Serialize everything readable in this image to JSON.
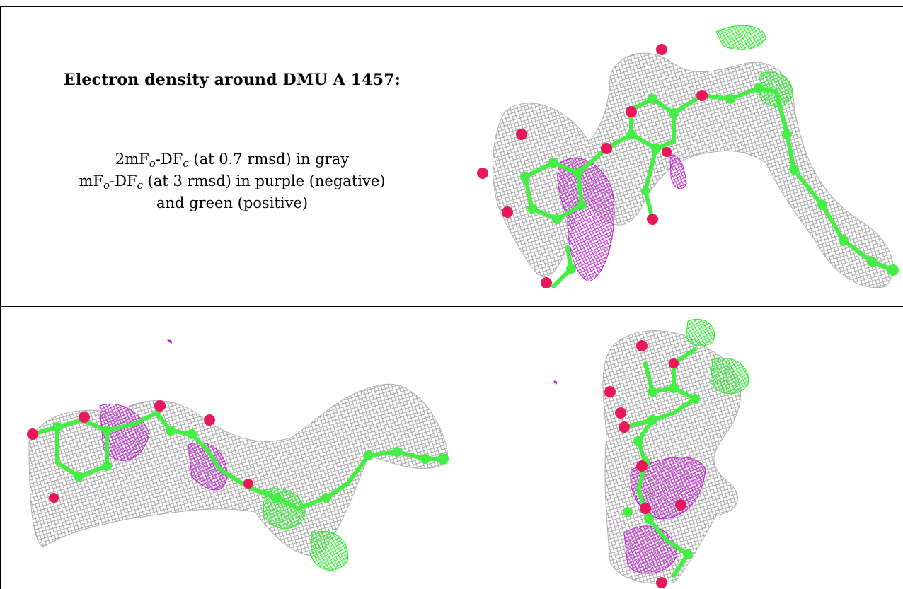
{
  "caption": {
    "title": "Electron density around DMU A 1457:",
    "line1_prefix": "2mF",
    "line1_sub1": "o",
    "line1_mid": "-DF",
    "line1_sub2": "c",
    "line1_suffix": " (at 0.7 rmsd) in gray",
    "line2_prefix": "mF",
    "line2_sub1": "o",
    "line2_mid": "-DF",
    "line2_sub2": "c",
    "line2_suffix": " (at 3 rmsd) in purple (negative)",
    "line3": "and green (positive)"
  },
  "colors": {
    "mesh_gray": "#9a9a9a",
    "negative_purple": "#c020d0",
    "positive_green": "#22ee22",
    "carbon_green": "#44ee44",
    "oxygen_red": "#e8185a"
  },
  "panels": [
    {
      "name": "view-top-right"
    },
    {
      "name": "view-bottom-left"
    },
    {
      "name": "view-bottom-right"
    }
  ]
}
